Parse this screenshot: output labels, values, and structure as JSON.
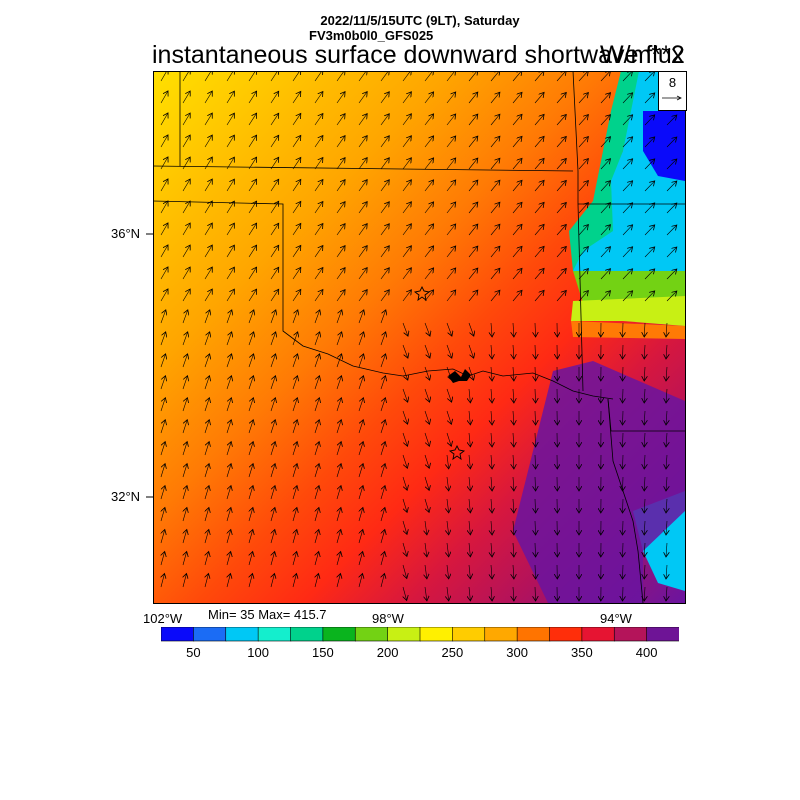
{
  "header": {
    "date_line": "2022/11/5/15UTC (9LT), Saturday",
    "model_line": "FV3m0b0l0_GFS025",
    "title": "instantaneous surface downward shortwave flux",
    "units": "W/m**2"
  },
  "vector_reference": {
    "magnitude": "8"
  },
  "axes": {
    "lat_labels": [
      "36°N",
      "32°N"
    ],
    "lon_labels": [
      "102°W",
      "98°W",
      "94°W"
    ]
  },
  "stats": {
    "text": "Min= 35 Max= 415.7"
  },
  "colorbar": {
    "colors": [
      "#0a0afa",
      "#1b6cf5",
      "#00c8f5",
      "#14eecd",
      "#00d28c",
      "#0ab41e",
      "#73d214",
      "#c8f014",
      "#fff000",
      "#ffcc00",
      "#ffa800",
      "#ff7400",
      "#ff2e0a",
      "#e61432",
      "#b4145a",
      "#6e1496"
    ],
    "labels": [
      "50",
      "100",
      "150",
      "200",
      "250",
      "300",
      "350",
      "400"
    ]
  },
  "map": {
    "field_colors": [
      "#ffe000",
      "#ffc000",
      "#ffa500",
      "#ff7a05",
      "#ff4a0a",
      "#ff2a14",
      "#d7173e",
      "#b2125c",
      "#8f1278",
      "#6a14a0",
      "#5a0a96"
    ],
    "markers": [
      "star",
      "star"
    ]
  }
}
